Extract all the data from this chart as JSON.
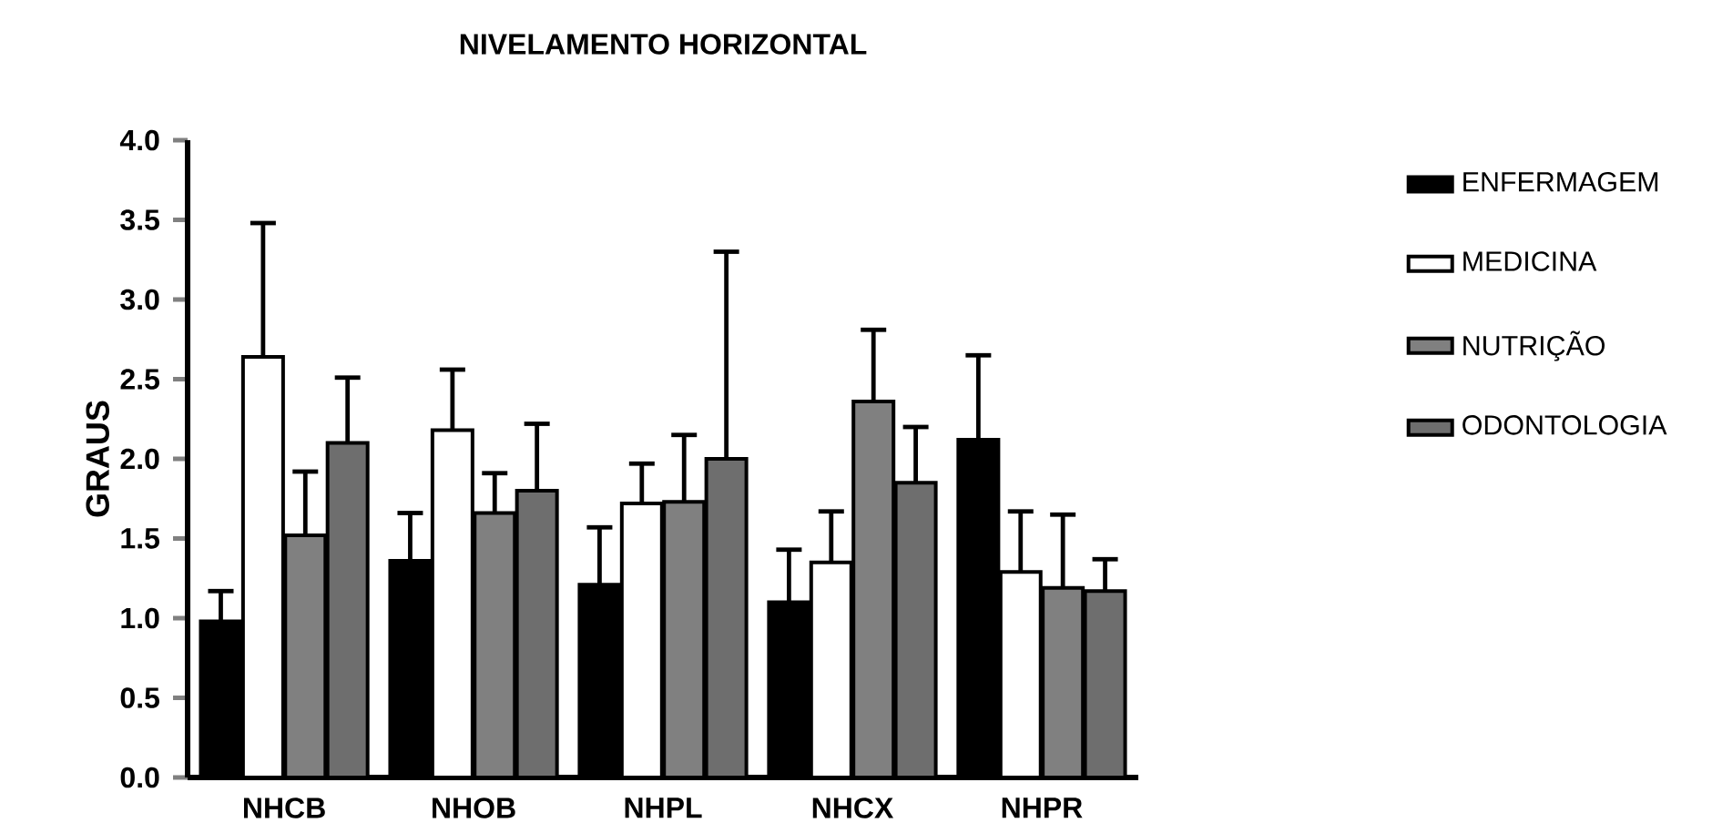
{
  "chart_data": {
    "type": "bar",
    "title": "NIVELAMENTO HORIZONTAL",
    "ylabel": "GRAUS",
    "categories": [
      "NHCB",
      "NHOB",
      "NHPL",
      "NHCX",
      "NHPR"
    ],
    "series": [
      {
        "name": "ENFERMAGEM",
        "color": "#000000",
        "values": [
          0.98,
          1.36,
          1.21,
          1.1,
          2.12
        ],
        "errors": [
          [
            0.98,
            1.17
          ],
          [
            1.36,
            1.66
          ],
          [
            1.21,
            1.57
          ],
          [
            1.1,
            1.43
          ],
          [
            2.12,
            2.65
          ]
        ]
      },
      {
        "name": "MEDICINA",
        "color": "#ffffff",
        "values": [
          2.64,
          2.18,
          1.72,
          1.35,
          1.29
        ],
        "errors": [
          [
            2.64,
            3.48
          ],
          [
            2.18,
            2.56
          ],
          [
            1.72,
            1.97
          ],
          [
            1.35,
            1.67
          ],
          [
            1.29,
            1.67
          ]
        ]
      },
      {
        "name": "NUTRIÇÃO",
        "color": "#808080",
        "values": [
          1.52,
          1.66,
          1.73,
          2.36,
          1.19
        ],
        "errors": [
          [
            1.52,
            1.92
          ],
          [
            1.66,
            1.91
          ],
          [
            1.73,
            2.15
          ],
          [
            2.36,
            2.81
          ],
          [
            1.19,
            1.65
          ]
        ]
      },
      {
        "name": "ODONTOLOGIA",
        "color": "#6e6e6e",
        "values": [
          2.1,
          1.8,
          2.0,
          1.85,
          1.17
        ],
        "errors": [
          [
            2.1,
            2.51
          ],
          [
            1.8,
            2.22
          ],
          [
            2.0,
            3.3
          ],
          [
            1.85,
            2.2
          ],
          [
            1.17,
            1.37
          ]
        ]
      }
    ],
    "ylim": [
      0,
      4
    ],
    "yticks": [
      {
        "value": 0,
        "label": "0.0"
      },
      {
        "value": 0.5,
        "label": "0.5"
      },
      {
        "value": 1,
        "label": "1.0"
      },
      {
        "value": 1.5,
        "label": "1.5"
      },
      {
        "value": 2,
        "label": "2.0"
      },
      {
        "value": 2.5,
        "label": "2.5"
      },
      {
        "value": 3,
        "label": "3.0"
      },
      {
        "value": 3.5,
        "label": "3.5"
      },
      {
        "value": 4,
        "label": "4.0"
      }
    ],
    "grid": false,
    "legend": "right"
  }
}
